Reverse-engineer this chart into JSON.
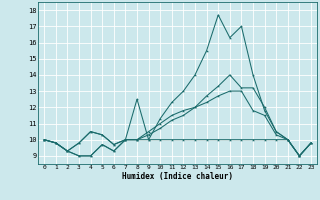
{
  "xlabel": "Humidex (Indice chaleur)",
  "bg_color": "#cce8ec",
  "line_color": "#1a6b6b",
  "grid_color": "#ffffff",
  "xlim": [
    -0.5,
    23.5
  ],
  "ylim": [
    8.5,
    18.5
  ],
  "yticks": [
    9,
    10,
    11,
    12,
    13,
    14,
    15,
    16,
    17,
    18
  ],
  "xticks": [
    0,
    1,
    2,
    3,
    4,
    5,
    6,
    7,
    8,
    9,
    10,
    11,
    12,
    13,
    14,
    15,
    16,
    17,
    18,
    19,
    20,
    21,
    22,
    23
  ],
  "line1": [
    10.0,
    9.8,
    9.3,
    9.0,
    9.0,
    9.7,
    9.3,
    10.0,
    12.5,
    10.0,
    11.3,
    12.3,
    13.0,
    14.0,
    15.5,
    17.7,
    16.3,
    17.0,
    14.0,
    11.8,
    10.5,
    10.0,
    9.0,
    9.8
  ],
  "line2": [
    10.0,
    9.8,
    9.3,
    9.8,
    10.5,
    10.3,
    9.7,
    10.0,
    10.0,
    10.3,
    10.7,
    11.2,
    11.5,
    12.0,
    12.7,
    13.3,
    14.0,
    13.2,
    13.2,
    12.0,
    10.5,
    10.0,
    9.0,
    9.8
  ],
  "line3": [
    10.0,
    9.8,
    9.3,
    9.8,
    10.5,
    10.3,
    9.7,
    10.0,
    10.0,
    10.5,
    11.0,
    11.5,
    11.8,
    12.0,
    12.3,
    12.7,
    13.0,
    13.0,
    11.8,
    11.5,
    10.3,
    10.0,
    9.0,
    9.8
  ],
  "line4": [
    10.0,
    9.8,
    9.3,
    9.0,
    9.0,
    9.7,
    9.3,
    10.0,
    10.0,
    10.0,
    10.0,
    10.0,
    10.0,
    10.0,
    10.0,
    10.0,
    10.0,
    10.0,
    10.0,
    10.0,
    10.0,
    10.0,
    9.0,
    9.8
  ]
}
